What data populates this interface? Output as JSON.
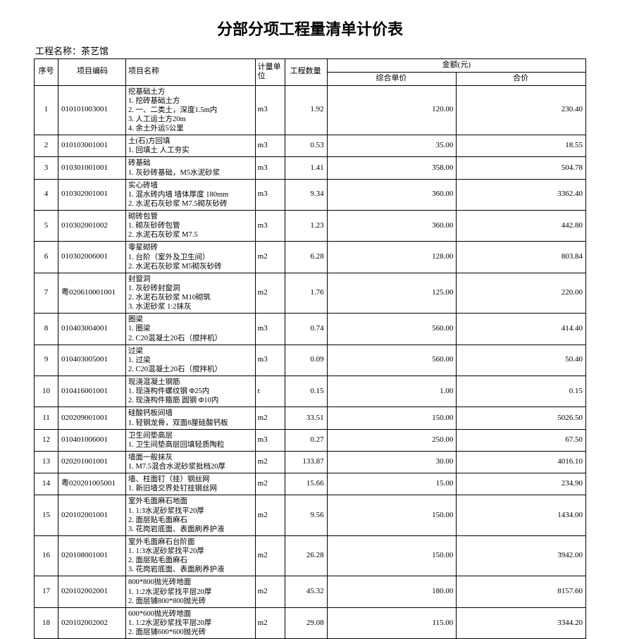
{
  "title": "分部分项工程量清单计价表",
  "project_label": "工程名称：",
  "project_name": "茶艺馆",
  "headers": {
    "seq": "序号",
    "code": "项目编码",
    "name": "项目名称",
    "unit": "计量单位",
    "qty": "工程数量",
    "amount_group": "金额(元)",
    "price": "综合单价",
    "amt": "合价"
  },
  "rows": [
    {
      "seq": "1",
      "code": "010101003001",
      "name": "挖基础土方\n1. 挖砖基础土方\n2. 一、二类土，深度1.5m内\n3. 人工运土方20m\n4. 余土外运5公里",
      "unit": "m3",
      "qty": "1.92",
      "price": "120.00",
      "amt": "230.40"
    },
    {
      "seq": "2",
      "code": "010103001001",
      "name": "土(石)方回填\n1. 回填土  人工夯实",
      "unit": "m3",
      "qty": "0.53",
      "price": "35.00",
      "amt": "18.55"
    },
    {
      "seq": "3",
      "code": "010301001001",
      "name": "砖基础\n1. 灰砂砖基础，M5水泥砂浆",
      "unit": "m3",
      "qty": "1.41",
      "price": "358.00",
      "amt": "504.78"
    },
    {
      "seq": "4",
      "code": "010302001001",
      "name": "实心砖墙\n1. 混水砖内墙  墙体厚度 180mm\n2. 水泥石灰砂浆 M7.5砌灰砂砖",
      "unit": "m3",
      "qty": "9.34",
      "price": "360.00",
      "amt": "3362.40"
    },
    {
      "seq": "5",
      "code": "010302001002",
      "name": "砌砖包管\n1. 砌灰砂砖包管\n2. 水泥石灰砂浆 M7.5",
      "unit": "m3",
      "qty": "1.23",
      "price": "360.00",
      "amt": "442.80"
    },
    {
      "seq": "6",
      "code": "010302006001",
      "name": "零星砌砖\n1. 台阶（室外及卫生间）\n2. 水泥石灰砂浆 M5砌灰砂砖",
      "unit": "m2",
      "qty": "6.28",
      "price": "128.00",
      "amt": "803.84"
    },
    {
      "seq": "7",
      "code": "粤020610001001",
      "name": "封窗洞\n1. 灰砂砖封窗洞\n2. 水泥石灰砂浆 M10砌筑\n3. 水泥砂浆 1:2抹灰",
      "unit": "m2",
      "qty": "1.76",
      "price": "125.00",
      "amt": "220.00"
    },
    {
      "seq": "8",
      "code": "010403004001",
      "name": "圈梁\n1. 圈梁\n2. C20混凝土20石（搅拌机）",
      "unit": "m3",
      "qty": "0.74",
      "price": "560.00",
      "amt": "414.40"
    },
    {
      "seq": "9",
      "code": "010403005001",
      "name": "过梁\n1. 过梁\n2. C20混凝土20石（搅拌机）",
      "unit": "m3",
      "qty": "0.09",
      "price": "560.00",
      "amt": "50.40"
    },
    {
      "seq": "10",
      "code": "010416001001",
      "name": "现浇混凝土钢筋\n1. 现浇构件螺纹钢 Φ25内\n2. 现浇构件箍筋  圆钢 Φ10内",
      "unit": "t",
      "qty": "0.15",
      "price": "1.00",
      "amt": "0.15"
    },
    {
      "seq": "11",
      "code": "020209001001",
      "name": "硅酸钙板间墙\n1. 轻钢龙骨，双面8厘硅酸钙板",
      "unit": "m2",
      "qty": "33.51",
      "price": "150.00",
      "amt": "5026.50"
    },
    {
      "seq": "12",
      "code": "010401006001",
      "name": "卫生间垫高层\n1. 卫生间垫高层回填轻质陶粒",
      "unit": "m3",
      "qty": "0.27",
      "price": "250.00",
      "amt": "67.50"
    },
    {
      "seq": "13",
      "code": "020201001001",
      "name": "墙面一般抹灰\n1. M7.5混合水泥砂浆批档20厚",
      "unit": "m2",
      "qty": "133.87",
      "price": "30.00",
      "amt": "4016.10"
    },
    {
      "seq": "14",
      "code": "粤020201005001",
      "name": "墙、柱面钉（挂）钢丝网\n1. 新旧墙交界处钉挂钢丝网",
      "unit": "m2",
      "qty": "15.66",
      "price": "15.00",
      "amt": "234.90"
    },
    {
      "seq": "15",
      "code": "020102001001",
      "name": "室外毛面麻石地面\n1. 1:3水泥砂浆找平20厚\n2. 面层贴毛面麻石\n3. 花岗岩底面、表面刷养护液",
      "unit": "m2",
      "qty": "9.56",
      "price": "150.00",
      "amt": "1434.00"
    },
    {
      "seq": "16",
      "code": "020108001001",
      "name": "室外毛面麻石台阶面\n1. 1:3水泥砂浆找平20厚\n2. 面层贴毛面麻石\n3. 花岗岩底面、表面刷养护液",
      "unit": "m2",
      "qty": "26.28",
      "price": "150.00",
      "amt": "3942.00"
    },
    {
      "seq": "17",
      "code": "020102002001",
      "name": "800*800抛光砖地面\n1. 1:2水泥砂浆找平层20厚\n2. 面层铺800*800抛光砖",
      "unit": "m2",
      "qty": "45.32",
      "price": "180.00",
      "amt": "8157.60"
    },
    {
      "seq": "18",
      "code": "020102002002",
      "name": "600*600抛光砖地面\n1. 1:2水泥砂浆找平层20厚\n2. 面层铺600*600抛光砖",
      "unit": "m2",
      "qty": "29.08",
      "price": "115.00",
      "amt": "3344.20"
    }
  ]
}
